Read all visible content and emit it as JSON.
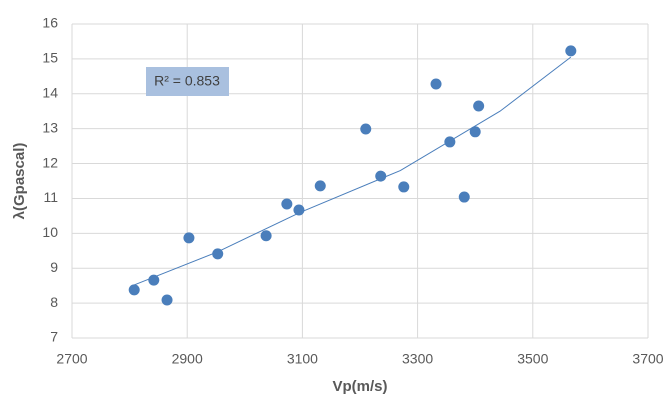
{
  "chart_data": {
    "type": "scatter",
    "x_label": "Vp(m/s)",
    "y_label": "λ(Gpascal)",
    "annotation": "R² = 0.853",
    "x": [
      2808,
      2842,
      2865,
      2903,
      2953,
      3037,
      3073,
      3094,
      3131,
      3210,
      3236,
      3276,
      3332,
      3356,
      3381,
      3400,
      3406,
      3566
    ],
    "values": [
      8.38,
      8.66,
      8.09,
      9.87,
      9.41,
      9.93,
      10.84,
      10.67,
      11.36,
      12.99,
      11.64,
      11.33,
      14.28,
      12.62,
      11.04,
      12.91,
      13.65,
      15.23
    ],
    "color": "#4a7ebb",
    "trendline": {
      "x": [
        2808,
        2953,
        3096,
        3270,
        3443,
        3566
      ],
      "values": [
        8.52,
        9.47,
        10.6,
        11.8,
        13.5,
        15.05
      ],
      "color": "#4a7ebb"
    },
    "xlim": [
      2700,
      3700
    ],
    "xticks": [
      2700,
      2900,
      3100,
      3300,
      3500,
      3700
    ],
    "ylim": [
      7,
      16
    ],
    "yticks": [
      7,
      8,
      9,
      10,
      11,
      12,
      13,
      14,
      15,
      16
    ],
    "grid": true
  }
}
